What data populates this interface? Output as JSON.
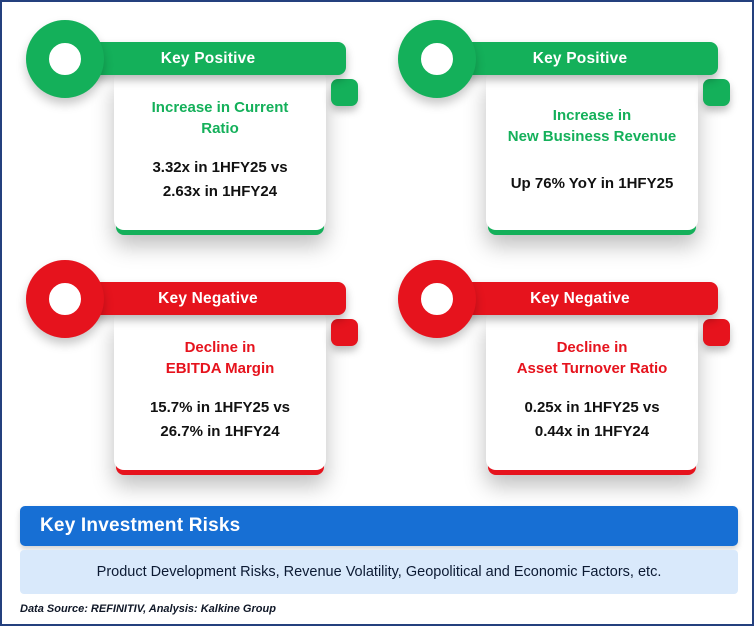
{
  "colors": {
    "green": "#14b05a",
    "red": "#e6131d",
    "banner-blue": "#176fd4",
    "risk-bg": "#d9e9fb",
    "border-navy": "#24407e"
  },
  "keys": [
    {
      "label": "Key Positive",
      "sentiment": "positive",
      "title_line1": "Increase in Current",
      "title_line2": "Ratio",
      "value_line1": "3.32x in 1HFY25 vs",
      "value_line2": "2.63x in 1HFY24"
    },
    {
      "label": "Key Positive",
      "sentiment": "positive",
      "title_line1": "Increase in",
      "title_line2": "New Business Revenue",
      "value_line1": "Up 76% YoY in 1HFY25",
      "value_line2": ""
    },
    {
      "label": "Key Negative",
      "sentiment": "negative",
      "title_line1": "Decline in",
      "title_line2": "EBITDA Margin",
      "value_line1": "15.7% in 1HFY25 vs",
      "value_line2": "26.7% in 1HFY24"
    },
    {
      "label": "Key Negative",
      "sentiment": "negative",
      "title_line1": "Decline in",
      "title_line2": "Asset Turnover Ratio",
      "value_line1": "0.25x in 1HFY25 vs",
      "value_line2": "0.44x in 1HFY24"
    }
  ],
  "risks": {
    "title": "Key Investment Risks",
    "body": "Product Development Risks, Revenue Volatility, Geopolitical and Economic Factors, etc."
  },
  "footer": {
    "text": "Data Source: REFINITIV, Analysis: Kalkine Group"
  }
}
